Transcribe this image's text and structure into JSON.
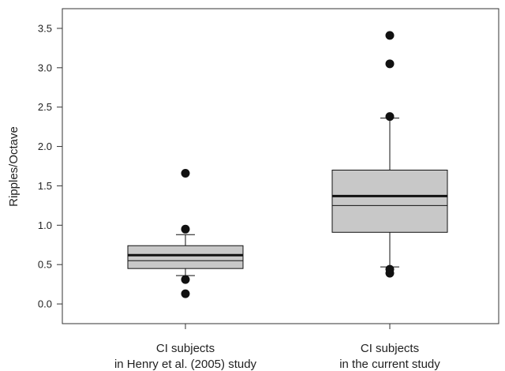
{
  "chart_data": {
    "type": "box",
    "title": "",
    "xlabel": "",
    "ylabel": "Ripples/Octave",
    "ylim": [
      -0.25,
      3.75
    ],
    "yticks": [
      "0.0",
      "0.5",
      "1.0",
      "1.5",
      "2.0",
      "2.5",
      "3.0",
      "3.5"
    ],
    "grid": false,
    "legend": "none",
    "box_fill": "#c8c8c8",
    "categories": [
      [
        "CI subjects",
        "in Henry et al. (2005) study"
      ],
      [
        "CI subjects",
        "in the current study"
      ]
    ],
    "boxes": [
      {
        "q1": 0.45,
        "median": 0.55,
        "mean": 0.62,
        "q3": 0.74,
        "whisker_low": 0.36,
        "whisker_high": 0.88,
        "outliers": [
          0.13,
          0.31,
          0.95,
          1.66
        ]
      },
      {
        "q1": 0.91,
        "median": 1.25,
        "mean": 1.37,
        "q3": 1.7,
        "whisker_low": 0.47,
        "whisker_high": 2.36,
        "outliers": [
          0.39,
          0.44,
          2.38,
          3.05,
          3.41
        ]
      }
    ]
  }
}
